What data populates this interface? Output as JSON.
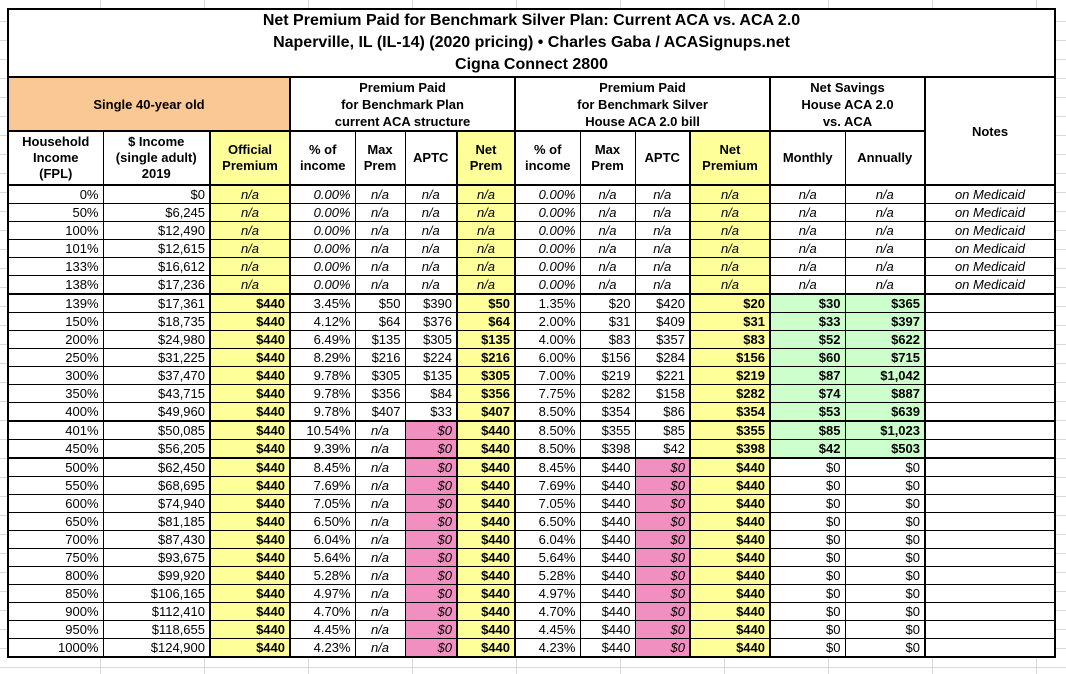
{
  "title_lines": [
    "Net Premium Paid for Benchmark Silver Plan: Current ACA vs. ACA 2.0",
    "Naperville, IL (IL-14) (2020 pricing) • Charles Gaba / ACASignups.net",
    "Cigna Connect 2800"
  ],
  "header": {
    "subject": "Single 40-year old",
    "group_current": "Premium Paid\nfor Benchmark Plan\ncurrent ACA structure",
    "group_house": "Premium Paid\nfor Benchmark Silver\nHouse ACA 2.0 bill",
    "group_savings": "Net Savings\nHouse ACA 2.0\nvs. ACA",
    "notes_label": "Notes",
    "columns": [
      "Household\nIncome\n(FPL)",
      "$ Income\n(single adult)\n2019",
      "Official\nPremium",
      "% of\nincome",
      "Max\nPrem",
      "APTC",
      "Net\nPrem",
      "% of\nincome",
      "Max\nPrem",
      "APTC",
      "Net\nPremium",
      "Monthly",
      "Annually"
    ]
  },
  "colors": {
    "subject_bg": "#F9C895",
    "highlight_yellow": "#FFFF99",
    "highlight_pink": "#F18FC1",
    "highlight_green": "#CCFFCC",
    "border": "#000000",
    "gridline": "#D9D9D9"
  },
  "rows": [
    {
      "type": "medicaid",
      "cells": [
        "0%",
        "$0",
        "n/a",
        "0.00%",
        "n/a",
        "n/a",
        "n/a",
        "0.00%",
        "n/a",
        "n/a",
        "n/a",
        "n/a",
        "n/a",
        "on Medicaid"
      ]
    },
    {
      "type": "medicaid",
      "cells": [
        "50%",
        "$6,245",
        "n/a",
        "0.00%",
        "n/a",
        "n/a",
        "n/a",
        "0.00%",
        "n/a",
        "n/a",
        "n/a",
        "n/a",
        "n/a",
        "on Medicaid"
      ]
    },
    {
      "type": "medicaid",
      "cells": [
        "100%",
        "$12,490",
        "n/a",
        "0.00%",
        "n/a",
        "n/a",
        "n/a",
        "0.00%",
        "n/a",
        "n/a",
        "n/a",
        "n/a",
        "n/a",
        "on Medicaid"
      ]
    },
    {
      "type": "medicaid",
      "cells": [
        "101%",
        "$12,615",
        "n/a",
        "0.00%",
        "n/a",
        "n/a",
        "n/a",
        "0.00%",
        "n/a",
        "n/a",
        "n/a",
        "n/a",
        "n/a",
        "on Medicaid"
      ]
    },
    {
      "type": "medicaid",
      "cells": [
        "133%",
        "$16,612",
        "n/a",
        "0.00%",
        "n/a",
        "n/a",
        "n/a",
        "0.00%",
        "n/a",
        "n/a",
        "n/a",
        "n/a",
        "n/a",
        "on Medicaid"
      ]
    },
    {
      "type": "medicaid",
      "cells": [
        "138%",
        "$17,236",
        "n/a",
        "0.00%",
        "n/a",
        "n/a",
        "n/a",
        "0.00%",
        "n/a",
        "n/a",
        "n/a",
        "n/a",
        "n/a",
        "on Medicaid"
      ]
    },
    {
      "type": "subsidy",
      "cells": [
        "139%",
        "$17,361",
        "$440",
        "3.45%",
        "$50",
        "$390",
        "$50",
        "1.35%",
        "$20",
        "$420",
        "$20",
        "$30",
        "$365",
        ""
      ]
    },
    {
      "type": "subsidy",
      "cells": [
        "150%",
        "$18,735",
        "$440",
        "4.12%",
        "$64",
        "$376",
        "$64",
        "2.00%",
        "$31",
        "$409",
        "$31",
        "$33",
        "$397",
        ""
      ]
    },
    {
      "type": "subsidy",
      "cells": [
        "200%",
        "$24,980",
        "$440",
        "6.49%",
        "$135",
        "$305",
        "$135",
        "4.00%",
        "$83",
        "$357",
        "$83",
        "$52",
        "$622",
        ""
      ]
    },
    {
      "type": "subsidy",
      "cells": [
        "250%",
        "$31,225",
        "$440",
        "8.29%",
        "$216",
        "$224",
        "$216",
        "6.00%",
        "$156",
        "$284",
        "$156",
        "$60",
        "$715",
        ""
      ]
    },
    {
      "type": "subsidy",
      "cells": [
        "300%",
        "$37,470",
        "$440",
        "9.78%",
        "$305",
        "$135",
        "$305",
        "7.00%",
        "$219",
        "$221",
        "$219",
        "$87",
        "$1,042",
        ""
      ]
    },
    {
      "type": "subsidy",
      "cells": [
        "350%",
        "$43,715",
        "$440",
        "9.78%",
        "$356",
        "$84",
        "$356",
        "7.75%",
        "$282",
        "$158",
        "$282",
        "$74",
        "$887",
        ""
      ]
    },
    {
      "type": "subsidy",
      "cells": [
        "400%",
        "$49,960",
        "$440",
        "9.78%",
        "$407",
        "$33",
        "$407",
        "8.50%",
        "$354",
        "$86",
        "$354",
        "$53",
        "$639",
        ""
      ]
    },
    {
      "type": "cliff",
      "cells": [
        "401%",
        "$50,085",
        "$440",
        "10.54%",
        "n/a",
        "$0",
        "$440",
        "8.50%",
        "$355",
        "$85",
        "$355",
        "$85",
        "$1,023",
        ""
      ]
    },
    {
      "type": "cliff",
      "cells": [
        "450%",
        "$56,205",
        "$440",
        "9.39%",
        "n/a",
        "$0",
        "$440",
        "8.50%",
        "$398",
        "$42",
        "$398",
        "$42",
        "$503",
        ""
      ]
    },
    {
      "type": "over",
      "cells": [
        "500%",
        "$62,450",
        "$440",
        "8.45%",
        "n/a",
        "$0",
        "$440",
        "8.45%",
        "$440",
        "$0",
        "$440",
        "$0",
        "$0",
        ""
      ]
    },
    {
      "type": "over",
      "cells": [
        "550%",
        "$68,695",
        "$440",
        "7.69%",
        "n/a",
        "$0",
        "$440",
        "7.69%",
        "$440",
        "$0",
        "$440",
        "$0",
        "$0",
        ""
      ]
    },
    {
      "type": "over",
      "cells": [
        "600%",
        "$74,940",
        "$440",
        "7.05%",
        "n/a",
        "$0",
        "$440",
        "7.05%",
        "$440",
        "$0",
        "$440",
        "$0",
        "$0",
        ""
      ]
    },
    {
      "type": "over",
      "cells": [
        "650%",
        "$81,185",
        "$440",
        "6.50%",
        "n/a",
        "$0",
        "$440",
        "6.50%",
        "$440",
        "$0",
        "$440",
        "$0",
        "$0",
        ""
      ]
    },
    {
      "type": "over",
      "cells": [
        "700%",
        "$87,430",
        "$440",
        "6.04%",
        "n/a",
        "$0",
        "$440",
        "6.04%",
        "$440",
        "$0",
        "$440",
        "$0",
        "$0",
        ""
      ]
    },
    {
      "type": "over",
      "cells": [
        "750%",
        "$93,675",
        "$440",
        "5.64%",
        "n/a",
        "$0",
        "$440",
        "5.64%",
        "$440",
        "$0",
        "$440",
        "$0",
        "$0",
        ""
      ]
    },
    {
      "type": "over",
      "cells": [
        "800%",
        "$99,920",
        "$440",
        "5.28%",
        "n/a",
        "$0",
        "$440",
        "5.28%",
        "$440",
        "$0",
        "$440",
        "$0",
        "$0",
        ""
      ]
    },
    {
      "type": "over",
      "cells": [
        "850%",
        "$106,165",
        "$440",
        "4.97%",
        "n/a",
        "$0",
        "$440",
        "4.97%",
        "$440",
        "$0",
        "$440",
        "$0",
        "$0",
        ""
      ]
    },
    {
      "type": "over",
      "cells": [
        "900%",
        "$112,410",
        "$440",
        "4.70%",
        "n/a",
        "$0",
        "$440",
        "4.70%",
        "$440",
        "$0",
        "$440",
        "$0",
        "$0",
        ""
      ]
    },
    {
      "type": "over",
      "cells": [
        "950%",
        "$118,655",
        "$440",
        "4.45%",
        "n/a",
        "$0",
        "$440",
        "4.45%",
        "$440",
        "$0",
        "$440",
        "$0",
        "$0",
        ""
      ]
    },
    {
      "type": "over",
      "cells": [
        "1000%",
        "$124,900",
        "$440",
        "4.23%",
        "n/a",
        "$0",
        "$440",
        "4.23%",
        "$440",
        "$0",
        "$440",
        "$0",
        "$0",
        ""
      ]
    }
  ]
}
